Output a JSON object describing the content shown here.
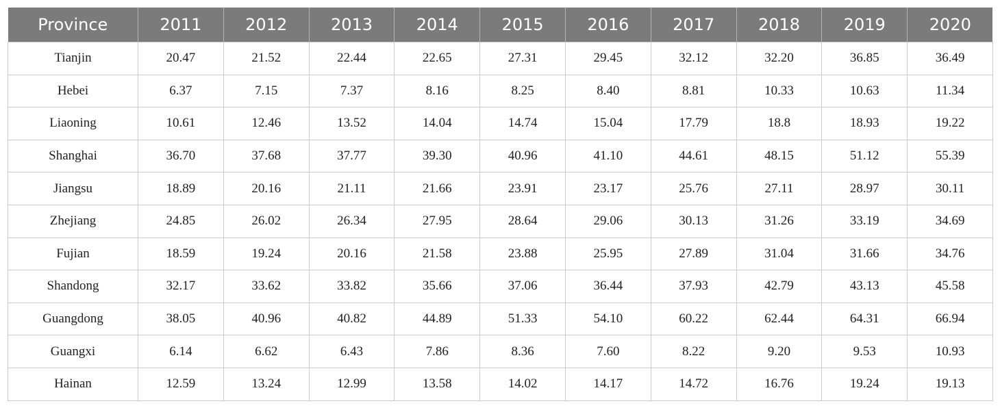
{
  "table": {
    "headers": [
      "Province",
      "2011",
      "2012",
      "2013",
      "2014",
      "2015",
      "2016",
      "2017",
      "2018",
      "2019",
      "2020"
    ],
    "rows": [
      [
        "Tianjin",
        "20.47",
        "21.52",
        "22.44",
        "22.65",
        "27.31",
        "29.45",
        "32.12",
        "32.20",
        "36.85",
        "36.49"
      ],
      [
        "Hebei",
        "6.37",
        "7.15",
        "7.37",
        "8.16",
        "8.25",
        "8.40",
        "8.81",
        "10.33",
        "10.63",
        "11.34"
      ],
      [
        "Liaoning",
        "10.61",
        "12.46",
        "13.52",
        "14.04",
        "14.74",
        "15.04",
        "17.79",
        "18.8",
        "18.93",
        "19.22"
      ],
      [
        "Shanghai",
        "36.70",
        "37.68",
        "37.77",
        "39.30",
        "40.96",
        "41.10",
        "44.61",
        "48.15",
        "51.12",
        "55.39"
      ],
      [
        "Jiangsu",
        "18.89",
        "20.16",
        "21.11",
        "21.66",
        "23.91",
        "23.17",
        "25.76",
        "27.11",
        "28.97",
        "30.11"
      ],
      [
        "Zhejiang",
        "24.85",
        "26.02",
        "26.34",
        "27.95",
        "28.64",
        "29.06",
        "30.13",
        "31.26",
        "33.19",
        "34.69"
      ],
      [
        "Fujian",
        "18.59",
        "19.24",
        "20.16",
        "21.58",
        "23.88",
        "25.95",
        "27.89",
        "31.04",
        "31.66",
        "34.76"
      ],
      [
        "Shandong",
        "32.17",
        "33.62",
        "33.82",
        "35.66",
        "37.06",
        "36.44",
        "37.93",
        "42.79",
        "43.13",
        "45.58"
      ],
      [
        "Guangdong",
        "38.05",
        "40.96",
        "40.82",
        "44.89",
        "51.33",
        "54.10",
        "60.22",
        "62.44",
        "64.31",
        "66.94"
      ],
      [
        "Guangxi",
        "6.14",
        "6.62",
        "6.43",
        "7.86",
        "8.36",
        "7.60",
        "8.22",
        "9.20",
        "9.53",
        "10.93"
      ],
      [
        "Hainan",
        "12.59",
        "13.24",
        "12.99",
        "13.58",
        "14.02",
        "14.17",
        "14.72",
        "16.76",
        "19.24",
        "19.13"
      ]
    ]
  }
}
